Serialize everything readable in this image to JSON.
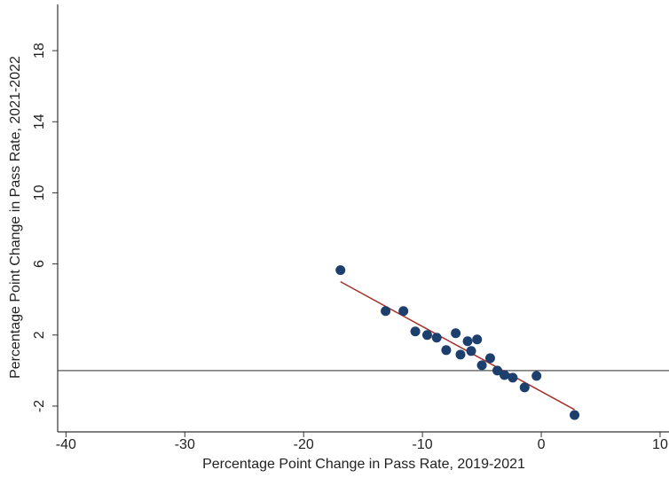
{
  "chart_data": {
    "type": "scatter",
    "x_label": "Percentage Point Change in Pass Rate, 2019-2021",
    "y_label": "Percentage Point Change in Pass Rate, 2021-2022",
    "x": [
      -16.9,
      -13.1,
      -11.6,
      -10.6,
      -9.6,
      -8.8,
      -8.0,
      -7.2,
      -6.8,
      -6.2,
      -5.9,
      -5.4,
      -5.0,
      -4.3,
      -3.7,
      -3.1,
      -2.4,
      -1.4,
      -0.4,
      2.8
    ],
    "values": [
      5.65,
      3.35,
      3.35,
      2.2,
      2.0,
      1.85,
      1.15,
      2.1,
      0.9,
      1.65,
      1.1,
      1.75,
      0.3,
      0.7,
      0.0,
      -0.25,
      -0.4,
      -0.95,
      -0.3,
      -2.5
    ],
    "color": "#1d3f6e",
    "fit_line": {
      "x": [
        -16.9,
        2.8
      ],
      "y": [
        5.0,
        -2.2
      ],
      "color": "#a3302a"
    },
    "hline": 0,
    "xlim": [
      -40.7,
      10.75
    ],
    "ylim": [
      -3.45,
      20.6
    ],
    "xticks": [
      -40,
      -30,
      -20,
      -10,
      0,
      10
    ],
    "yticks": [
      -2,
      2,
      6,
      10,
      14,
      18
    ]
  }
}
